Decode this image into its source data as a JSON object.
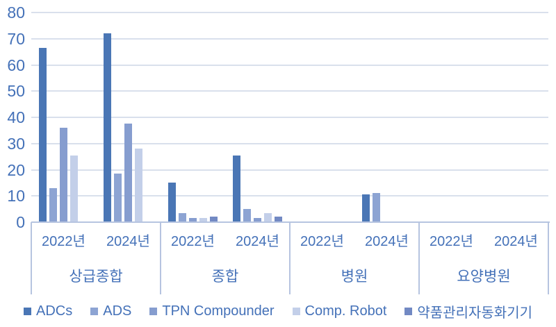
{
  "chart_data": {
    "type": "bar",
    "title": "",
    "xlabel": "",
    "ylabel": "",
    "ylim": [
      0,
      80
    ],
    "y_tick_step": 10,
    "y_tick_labels": [
      "0",
      "10",
      "20",
      "30",
      "40",
      "50",
      "60",
      "70",
      "80"
    ],
    "grid": true,
    "legend_position": "bottom",
    "groups": [
      {
        "label": "상급종합",
        "years": [
          "2022년",
          "2024년"
        ]
      },
      {
        "label": "종합",
        "years": [
          "2022년",
          "2024년"
        ]
      },
      {
        "label": "병원",
        "years": [
          "2022년",
          "2024년"
        ]
      },
      {
        "label": "요양병원",
        "years": [
          "2022년",
          "2024년"
        ]
      }
    ],
    "categories": [
      "상급종합 2022년",
      "상급종합 2024년",
      "종합 2022년",
      "종합 2024년",
      "병원 2022년",
      "병원 2024년",
      "요양병원 2022년",
      "요양병원 2024년"
    ],
    "series": [
      {
        "name": "ADCs",
        "color": "#4a76b5",
        "values": [
          66.5,
          72,
          15,
          25.5,
          0,
          10.5,
          0,
          0
        ]
      },
      {
        "name": "ADS",
        "color": "#8da4d3",
        "values": [
          13,
          18.5,
          3.5,
          5,
          0,
          11,
          0,
          0
        ]
      },
      {
        "name": "TPN Compounder",
        "color": "#869dcf",
        "values": [
          36,
          37.5,
          1.5,
          1.5,
          0,
          0,
          0,
          0
        ]
      },
      {
        "name": "Comp. Robot",
        "color": "#c3cfe9",
        "values": [
          25.5,
          28,
          1.5,
          3.5,
          0,
          0,
          0,
          0
        ]
      },
      {
        "name": "약품관리자동화기기",
        "color": "#7289c3",
        "values": [
          0,
          0,
          2,
          2,
          0,
          0,
          0,
          0
        ]
      }
    ],
    "colors": {
      "axis_text": "#4471b8",
      "gridline": "#d9e0ec",
      "axis_line": "#b6c4e0",
      "background": "#ffffff"
    }
  }
}
